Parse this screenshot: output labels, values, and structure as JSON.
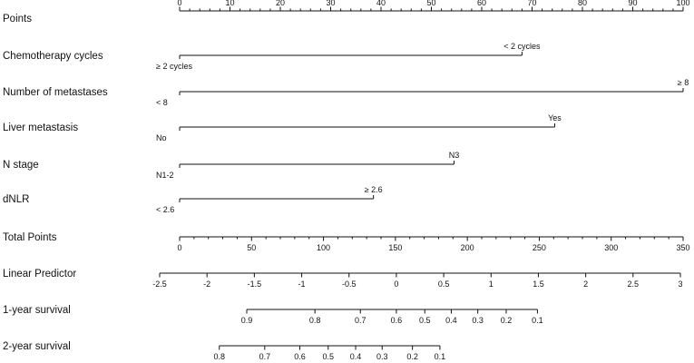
{
  "chart_data": {
    "type": "nomogram",
    "title": "",
    "points_axis": {
      "label": "Points",
      "range": [
        0,
        100
      ],
      "tick_labels": [
        "0",
        "10",
        "20",
        "30",
        "40",
        "50",
        "60",
        "70",
        "80",
        "90",
        "100"
      ],
      "minor_step": 2
    },
    "predictors": [
      {
        "label": "Chemotherapy cycles",
        "levels": [
          {
            "text": "≥ 2 cycles",
            "points": 0,
            "placement": "below"
          },
          {
            "text": "< 2 cycles",
            "points": 68,
            "placement": "above"
          }
        ]
      },
      {
        "label": "Number of metastases",
        "levels": [
          {
            "text": "< 8",
            "points": 0,
            "placement": "below"
          },
          {
            "text": "≥ 8",
            "points": 100,
            "placement": "above"
          }
        ]
      },
      {
        "label": "Liver metastasis",
        "levels": [
          {
            "text": "No",
            "points": 0,
            "placement": "below"
          },
          {
            "text": "Yes",
            "points": 74.5,
            "placement": "above"
          }
        ]
      },
      {
        "label": "N stage",
        "levels": [
          {
            "text": "N1-2",
            "points": 0,
            "placement": "below"
          },
          {
            "text": "N3",
            "points": 54.5,
            "placement": "above"
          }
        ]
      },
      {
        "label": "dNLR",
        "levels": [
          {
            "text": "< 2.6",
            "points": 0,
            "placement": "below"
          },
          {
            "text": "≥ 2.6",
            "points": 38.5,
            "placement": "above"
          }
        ]
      }
    ],
    "total_points_axis": {
      "label": "Total Points",
      "range": [
        0,
        350
      ],
      "tick_labels": [
        "0",
        "50",
        "100",
        "150",
        "200",
        "250",
        "300",
        "350"
      ],
      "minor_step": 10
    },
    "linear_predictor_axis": {
      "label": "Linear Predictor",
      "range": [
        -2.5,
        3
      ],
      "tick_labels": [
        "-2.5",
        "-2",
        "-1.5",
        "-1",
        "-0.5",
        "0",
        "0.5",
        "1",
        "1.5",
        "2",
        "2.5",
        "3"
      ]
    },
    "survival_axes": [
      {
        "label": "1-year survival",
        "tick_labels": [
          "0.9",
          "0.8",
          "0.7",
          "0.6",
          "0.5",
          "0.4",
          "0.3",
          "0.2",
          "0.1"
        ],
        "tick_linear_predictor": [
          -1.58,
          -0.86,
          -0.38,
          0.0,
          0.3,
          0.58,
          0.86,
          1.16,
          1.49
        ]
      },
      {
        "label": "2-year survival",
        "tick_labels": [
          "0.8",
          "0.7",
          "0.6",
          "0.5",
          "0.4",
          "0.3",
          "0.2",
          "0.1"
        ],
        "tick_linear_predictor": [
          -1.87,
          -1.39,
          -1.02,
          -0.72,
          -0.43,
          -0.15,
          0.17,
          0.46
        ]
      }
    ]
  }
}
